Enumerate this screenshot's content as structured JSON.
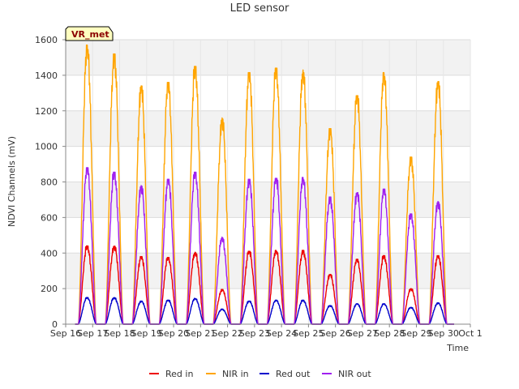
{
  "chart_data": {
    "type": "line",
    "title": "LED sensor",
    "xlabel": "Time",
    "ylabel": "NDVI Channels (mV)",
    "badge": "VR_met",
    "xlim": [
      0,
      15
    ],
    "ylim": [
      0,
      1600
    ],
    "x_ticks": [
      {
        "v": 0,
        "label": "Sep 16"
      },
      {
        "v": 1,
        "label": "Sep 17"
      },
      {
        "v": 2,
        "label": "Sep 18"
      },
      {
        "v": 3,
        "label": "Sep 19"
      },
      {
        "v": 4,
        "label": "Sep 20"
      },
      {
        "v": 5,
        "label": "Sep 21"
      },
      {
        "v": 6,
        "label": "Sep 22"
      },
      {
        "v": 7,
        "label": "Sep 23"
      },
      {
        "v": 8,
        "label": "Sep 24"
      },
      {
        "v": 9,
        "label": "Sep 25"
      },
      {
        "v": 10,
        "label": "Sep 26"
      },
      {
        "v": 11,
        "label": "Sep 27"
      },
      {
        "v": 12,
        "label": "Sep 28"
      },
      {
        "v": 13,
        "label": "Sep 29"
      },
      {
        "v": 14,
        "label": "Sep 30"
      },
      {
        "v": 15,
        "label": "Oct 1"
      }
    ],
    "y_ticks": [
      0,
      200,
      400,
      600,
      800,
      1000,
      1200,
      1400,
      1600
    ],
    "grid": true,
    "legend_position": "bottom",
    "series": [
      {
        "name": "Red in",
        "color": "#ee0000",
        "peaks": [
          {
            "x": 0.8,
            "y": 440
          },
          {
            "x": 1.8,
            "y": 440
          },
          {
            "x": 2.8,
            "y": 380
          },
          {
            "x": 3.8,
            "y": 375
          },
          {
            "x": 4.8,
            "y": 405
          },
          {
            "x": 5.8,
            "y": 195
          },
          {
            "x": 6.8,
            "y": 410
          },
          {
            "x": 7.8,
            "y": 415
          },
          {
            "x": 8.8,
            "y": 415
          },
          {
            "x": 9.8,
            "y": 280
          },
          {
            "x": 10.8,
            "y": 365
          },
          {
            "x": 11.8,
            "y": 385
          },
          {
            "x": 12.8,
            "y": 200
          },
          {
            "x": 13.8,
            "y": 385
          }
        ]
      },
      {
        "name": "NIR in",
        "color": "#ffa500",
        "peaks": [
          {
            "x": 0.8,
            "y": 1570
          },
          {
            "x": 1.8,
            "y": 1520
          },
          {
            "x": 2.8,
            "y": 1340
          },
          {
            "x": 3.8,
            "y": 1360
          },
          {
            "x": 4.8,
            "y": 1450
          },
          {
            "x": 5.8,
            "y": 1160
          },
          {
            "x": 6.8,
            "y": 1415
          },
          {
            "x": 7.8,
            "y": 1440
          },
          {
            "x": 8.8,
            "y": 1430
          },
          {
            "x": 9.8,
            "y": 1100
          },
          {
            "x": 10.8,
            "y": 1285
          },
          {
            "x": 11.8,
            "y": 1415
          },
          {
            "x": 12.8,
            "y": 940
          },
          {
            "x": 13.8,
            "y": 1365
          }
        ]
      },
      {
        "name": "Red out",
        "color": "#0000cc",
        "peaks": [
          {
            "x": 0.8,
            "y": 150
          },
          {
            "x": 1.8,
            "y": 150
          },
          {
            "x": 2.8,
            "y": 130
          },
          {
            "x": 3.8,
            "y": 135
          },
          {
            "x": 4.8,
            "y": 145
          },
          {
            "x": 5.8,
            "y": 85
          },
          {
            "x": 6.8,
            "y": 130
          },
          {
            "x": 7.8,
            "y": 135
          },
          {
            "x": 8.8,
            "y": 135
          },
          {
            "x": 9.8,
            "y": 105
          },
          {
            "x": 10.8,
            "y": 115
          },
          {
            "x": 11.8,
            "y": 115
          },
          {
            "x": 12.8,
            "y": 95
          },
          {
            "x": 13.8,
            "y": 120
          }
        ]
      },
      {
        "name": "NIR out",
        "color": "#a020f0",
        "peaks": [
          {
            "x": 0.8,
            "y": 880
          },
          {
            "x": 1.8,
            "y": 855
          },
          {
            "x": 2.8,
            "y": 780
          },
          {
            "x": 3.8,
            "y": 815
          },
          {
            "x": 4.8,
            "y": 855
          },
          {
            "x": 5.8,
            "y": 490
          },
          {
            "x": 6.8,
            "y": 815
          },
          {
            "x": 7.8,
            "y": 820
          },
          {
            "x": 8.8,
            "y": 825
          },
          {
            "x": 9.8,
            "y": 715
          },
          {
            "x": 10.8,
            "y": 740
          },
          {
            "x": 11.8,
            "y": 760
          },
          {
            "x": 12.8,
            "y": 620
          },
          {
            "x": 13.8,
            "y": 690
          }
        ]
      }
    ]
  }
}
